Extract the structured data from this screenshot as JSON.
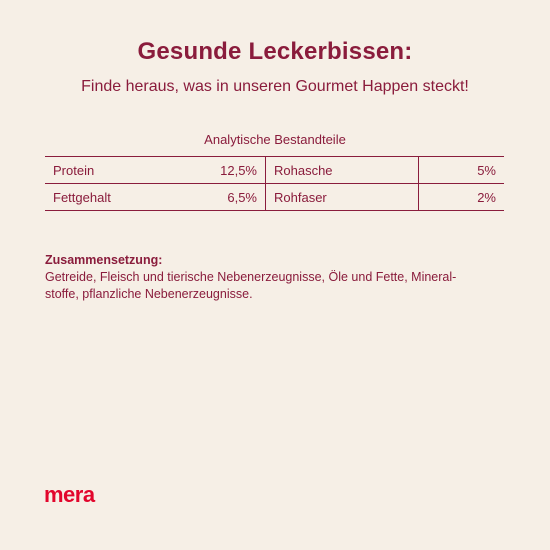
{
  "header": {
    "title": "Gesunde Leckerbissen:",
    "subtitle": "Finde heraus, was in unseren Gourmet Happen steckt!"
  },
  "analysis": {
    "heading": "Analytische Bestandteile",
    "rows": [
      {
        "name1": "Protein",
        "value1": "12,5%",
        "name2": "Rohasche",
        "value2": "5%"
      },
      {
        "name1": "Fettgehalt",
        "value1": "6,5%",
        "name2": "Rohfaser",
        "value2": "2%"
      }
    ]
  },
  "composition": {
    "label": "Zusammensetzung:",
    "line1": "Getreide, Fleisch und tierische Nebenerzeugnisse, Öle und Fette, Mineral-",
    "line2": "stoffe, pflanzliche Nebenerzeugnisse."
  },
  "brand": {
    "logo_text": "mera",
    "logo_color": "#e2062c",
    "text_color": "#8a1c3c",
    "background": "#f6efe6"
  }
}
